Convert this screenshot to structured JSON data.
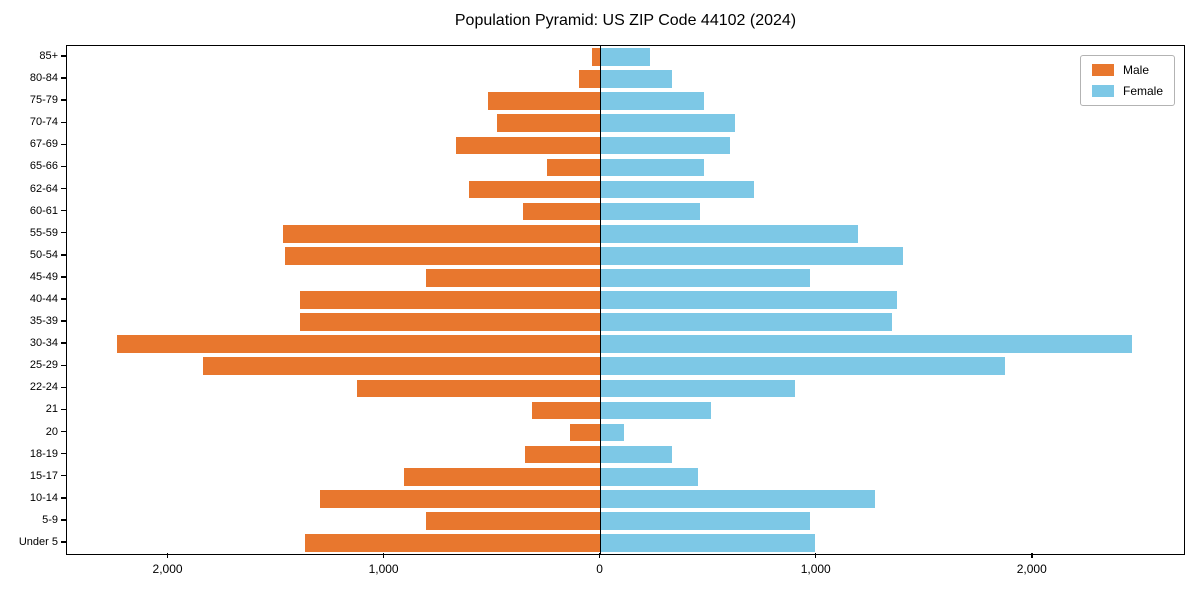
{
  "chart_data": {
    "type": "bar",
    "variant": "population-pyramid",
    "title": "Population Pyramid: US ZIP Code 44102 (2024)",
    "categories": [
      "85+",
      "80-84",
      "75-79",
      "70-74",
      "67-69",
      "65-66",
      "62-64",
      "60-61",
      "55-59",
      "50-54",
      "45-49",
      "40-44",
      "35-39",
      "30-34",
      "25-29",
      "22-24",
      "21",
      "20",
      "18-19",
      "15-17",
      "10-14",
      "5-9",
      "Under 5"
    ],
    "series": [
      {
        "name": "Male",
        "color": "#e8772e",
        "direction": "left",
        "values": [
          40,
          100,
          520,
          480,
          670,
          250,
          610,
          360,
          1470,
          1460,
          810,
          1390,
          1390,
          2240,
          1840,
          1130,
          320,
          140,
          350,
          910,
          1300,
          810,
          1370
        ]
      },
      {
        "name": "Female",
        "color": "#7dc8e6",
        "direction": "right",
        "values": [
          230,
          330,
          480,
          620,
          600,
          480,
          710,
          460,
          1190,
          1400,
          970,
          1370,
          1350,
          2460,
          1870,
          900,
          510,
          110,
          330,
          450,
          1270,
          970,
          990
        ]
      }
    ],
    "x_tick_values": [
      -2000,
      -1000,
      0,
      1000,
      2000
    ],
    "x_tick_labels": [
      "2,000",
      "1,000",
      "0",
      "1,000",
      "2,000"
    ],
    "xlim": [
      -2470,
      2700
    ],
    "bar_height_fraction": 0.8,
    "legend_position": "upper right",
    "grid": false,
    "axis_color": "#000000"
  }
}
